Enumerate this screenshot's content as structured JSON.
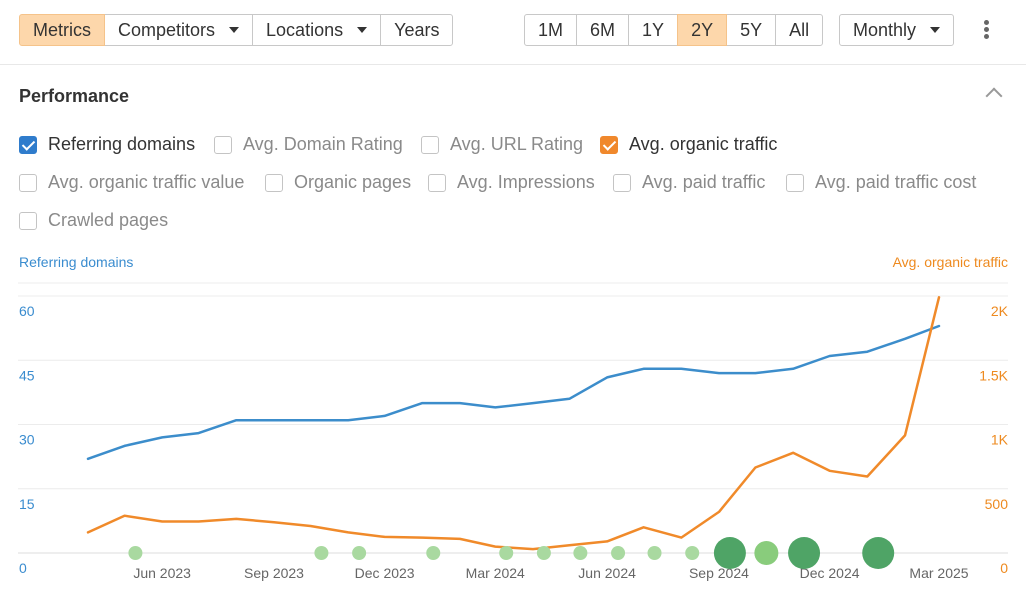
{
  "toolbar": {
    "view_tabs": [
      {
        "label": "Metrics",
        "active": true,
        "caret": false
      },
      {
        "label": "Competitors",
        "active": false,
        "caret": true
      },
      {
        "label": "Locations",
        "active": false,
        "caret": true
      },
      {
        "label": "Years",
        "active": false,
        "caret": false
      }
    ],
    "ranges": [
      {
        "label": "1M",
        "active": false
      },
      {
        "label": "6M",
        "active": false
      },
      {
        "label": "1Y",
        "active": false
      },
      {
        "label": "2Y",
        "active": true
      },
      {
        "label": "5Y",
        "active": false
      },
      {
        "label": "All",
        "active": false
      }
    ],
    "interval": "Monthly"
  },
  "section": {
    "title": "Performance"
  },
  "metrics": [
    {
      "label": "Referring domains",
      "checked": true,
      "color": "#2f7ccc"
    },
    {
      "label": "Avg. Domain Rating",
      "checked": false
    },
    {
      "label": "Avg. URL Rating",
      "checked": false
    },
    {
      "label": "Avg. organic traffic",
      "checked": true,
      "color": "#f0882c"
    },
    {
      "label": "Avg. organic traffic value",
      "checked": false
    },
    {
      "label": "Organic pages",
      "checked": false
    },
    {
      "label": "Avg. Impressions",
      "checked": false
    },
    {
      "label": "Avg. paid traffic",
      "checked": false
    },
    {
      "label": "Avg. paid traffic cost",
      "checked": false
    },
    {
      "label": "Crawled pages",
      "checked": false
    }
  ],
  "chart_data": {
    "type": "line",
    "x_tick_labels": [
      "Jun 2023",
      "Sep 2023",
      "Dec 2023",
      "Mar 2024",
      "Jun 2024",
      "Sep 2024",
      "Dec 2024",
      "Mar 2025"
    ],
    "y_left": {
      "title": "Referring domains",
      "ticks": [
        "0",
        "15",
        "30",
        "45",
        "60"
      ],
      "range": [
        0,
        60
      ],
      "color": "#3a8ccf"
    },
    "y_right": {
      "title": "Avg. organic traffic",
      "ticks": [
        "0",
        "500",
        "1K",
        "1.5K",
        "2K"
      ],
      "range": [
        0,
        2000
      ],
      "color": "#ee8a1f"
    },
    "x": [
      "2023-04-01",
      "2023-05-01",
      "2023-06-01",
      "2023-07-01",
      "2023-08-01",
      "2023-09-01",
      "2023-10-01",
      "2023-11-01",
      "2023-12-01",
      "2024-01-01",
      "2024-02-01",
      "2024-03-01",
      "2024-04-01",
      "2024-05-01",
      "2024-06-01",
      "2024-07-01",
      "2024-08-01",
      "2024-09-01",
      "2024-10-01",
      "2024-11-01",
      "2024-12-01",
      "2025-01-01",
      "2025-02-01",
      "2025-03-01"
    ],
    "series": [
      {
        "name": "Referring domains",
        "axis": "left",
        "color": "#3c8dcb",
        "values": [
          22,
          25,
          27,
          28,
          31,
          31,
          31,
          31,
          32,
          35,
          35,
          34,
          35,
          36,
          41,
          43,
          43,
          42,
          42,
          43,
          46,
          47,
          50,
          53
        ]
      },
      {
        "name": "Avg. organic traffic",
        "axis": "right",
        "color": "#f08a2a",
        "values": [
          160,
          290,
          245,
          245,
          265,
          240,
          210,
          160,
          125,
          120,
          110,
          50,
          30,
          60,
          90,
          200,
          120,
          320,
          665,
          780,
          640,
          595,
          915,
          1990
        ]
      }
    ],
    "annotations": [
      {
        "x": "2023-05-10",
        "size": "small",
        "color": "#a9d9a0"
      },
      {
        "x": "2023-10-10",
        "size": "small",
        "color": "#a9d9a0"
      },
      {
        "x": "2023-11-10",
        "size": "small",
        "color": "#a9d9a0"
      },
      {
        "x": "2024-01-10",
        "size": "small",
        "color": "#a9d9a0"
      },
      {
        "x": "2024-03-10",
        "size": "small",
        "color": "#a9d9a0"
      },
      {
        "x": "2024-04-10",
        "size": "small",
        "color": "#a9d9a0"
      },
      {
        "x": "2024-05-10",
        "size": "small",
        "color": "#a9d9a0"
      },
      {
        "x": "2024-06-10",
        "size": "small",
        "color": "#a9d9a0"
      },
      {
        "x": "2024-07-10",
        "size": "small",
        "color": "#a9d9a0"
      },
      {
        "x": "2024-08-10",
        "size": "small",
        "color": "#a9d9a0"
      },
      {
        "x": "2024-09-10",
        "size": "large",
        "color": "#4fa466"
      },
      {
        "x": "2024-10-10",
        "size": "medium",
        "color": "#89cc7c"
      },
      {
        "x": "2024-11-10",
        "size": "large",
        "color": "#4fa466"
      },
      {
        "x": "2025-01-10",
        "size": "large",
        "color": "#4fa466"
      }
    ],
    "grid": true
  }
}
